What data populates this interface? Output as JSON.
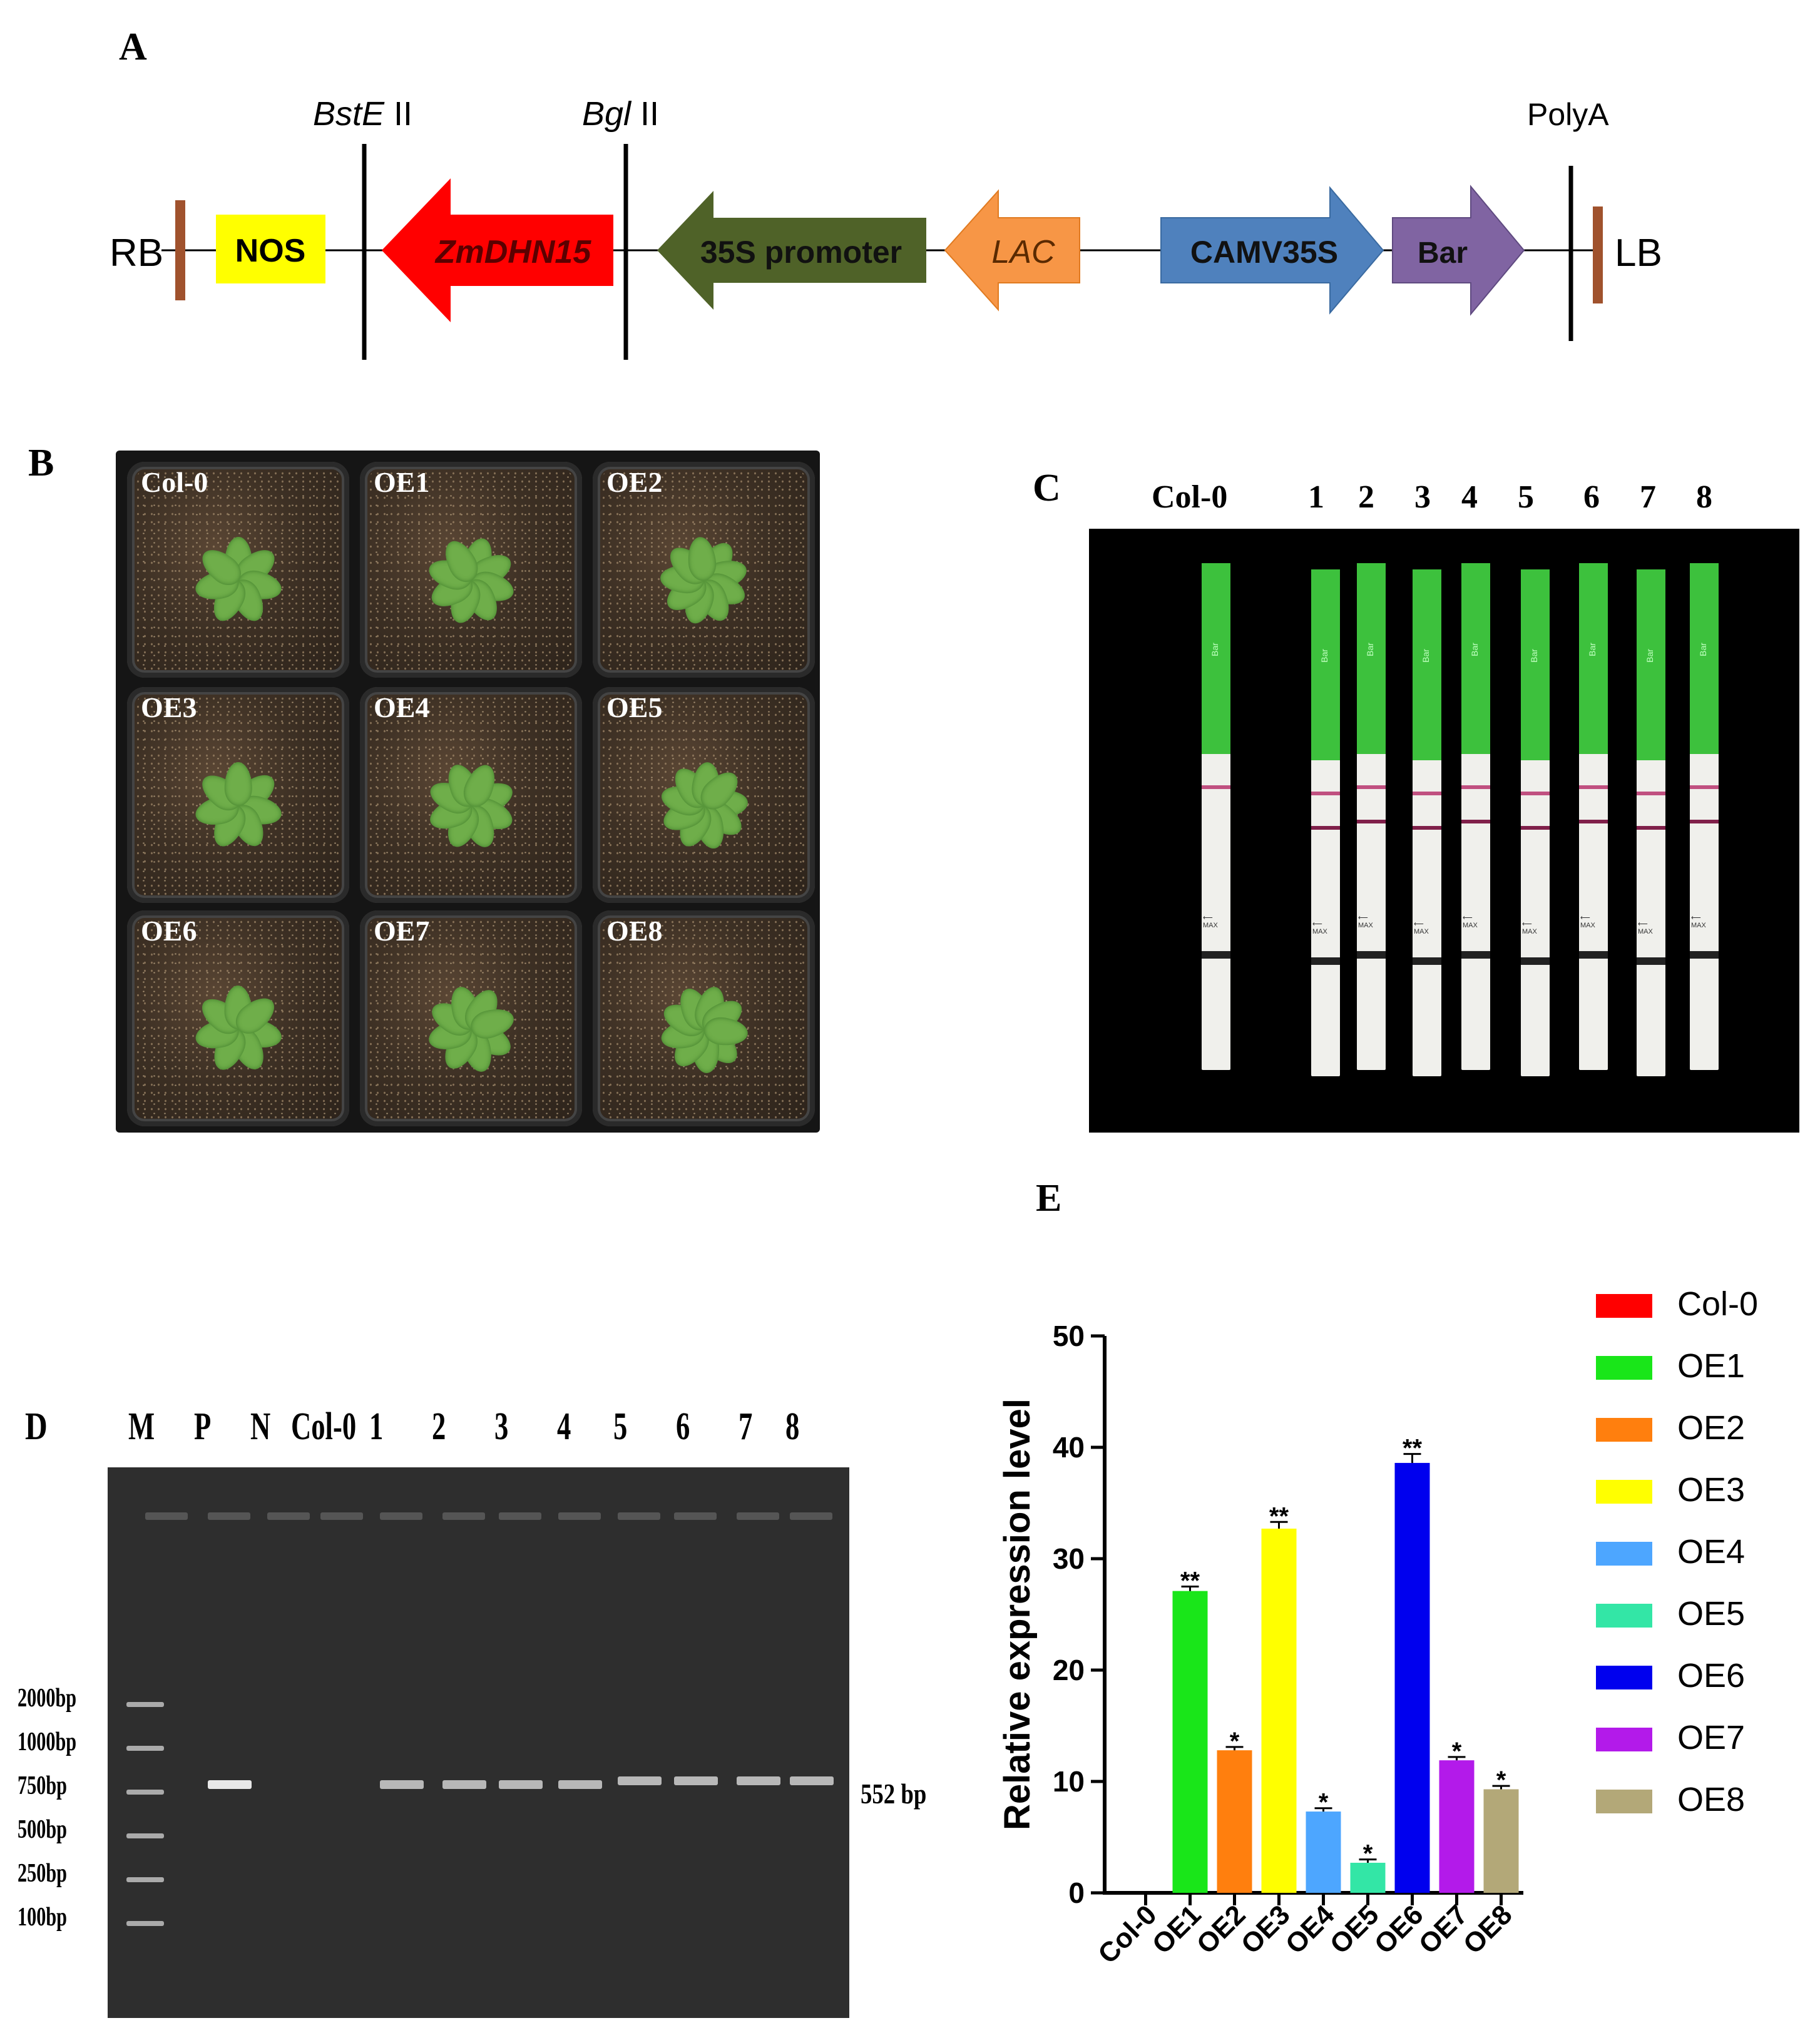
{
  "panels": {
    "a": "A",
    "b": "B",
    "c": "C",
    "d": "D",
    "e": "E"
  },
  "construct": {
    "rb": "RB",
    "lb": "LB",
    "sites": [
      {
        "italic": "BstE",
        "rest": " II"
      },
      {
        "italic": "Bgl",
        "rest": " II"
      },
      {
        "italic": "",
        "rest": "PolyA"
      }
    ],
    "elements": [
      {
        "label": "NOS",
        "color": "#ffff00",
        "direction": "box",
        "italic": false
      },
      {
        "label": "ZmDHN15",
        "color": "#ff0000",
        "direction": "left",
        "italic": true
      },
      {
        "label": "35S promoter",
        "color": "#4f6228",
        "direction": "left",
        "italic": false
      },
      {
        "label": "LAC",
        "color": "#f79646",
        "direction": "left",
        "italic": true
      },
      {
        "label": "CAMV35S",
        "color": "#4f81bd",
        "direction": "right",
        "italic": false
      },
      {
        "label": "Bar",
        "color": "#8064a2",
        "direction": "right",
        "italic": false
      }
    ]
  },
  "plants": {
    "labels": [
      "Col-0",
      "OE1",
      "OE2",
      "OE3",
      "OE4",
      "OE5",
      "OE6",
      "OE7",
      "OE8"
    ]
  },
  "strips": {
    "lane_labels": [
      "Col-0",
      "1",
      "2",
      "3",
      "4",
      "5",
      "6",
      "7",
      "8"
    ],
    "strip_text": "Bar",
    "max_text": "MAX"
  },
  "gel": {
    "lane_labels": [
      "M",
      "P",
      "N",
      "Col-0",
      "1",
      "2",
      "3",
      "4",
      "5",
      "6",
      "7",
      "8"
    ],
    "ladder": [
      "2000bp",
      "1000bp",
      "750bp",
      "500bp",
      "250bp",
      "100bp"
    ],
    "band_label": "552 bp"
  },
  "chart_data": {
    "type": "bar",
    "title": "",
    "xlabel": "",
    "ylabel": "Relative expression level",
    "ylim": [
      0,
      50
    ],
    "yticks": [
      0,
      10,
      20,
      30,
      40,
      50
    ],
    "categories": [
      "Col-0",
      "OE1",
      "OE2",
      "OE3",
      "OE4",
      "OE5",
      "OE6",
      "OE7",
      "OE8"
    ],
    "values": [
      0,
      27.1,
      12.8,
      32.7,
      7.3,
      2.7,
      38.6,
      11.9,
      9.3
    ],
    "errors": [
      0,
      0.4,
      0.3,
      0.6,
      0.3,
      0.3,
      0.8,
      0.3,
      0.3
    ],
    "significance": [
      "",
      "**",
      "*",
      "**",
      "*",
      "*",
      "**",
      "*",
      "*"
    ],
    "colors": [
      "#ff0000",
      "#19e619",
      "#ff7f0e",
      "#ffff00",
      "#4da6ff",
      "#33e6a6",
      "#0000ee",
      "#b31aea",
      "#b3a878"
    ],
    "legend": [
      "Col-0",
      "OE1",
      "OE2",
      "OE3",
      "OE4",
      "OE5",
      "OE6",
      "OE7",
      "OE8"
    ],
    "legend_position": "right"
  }
}
